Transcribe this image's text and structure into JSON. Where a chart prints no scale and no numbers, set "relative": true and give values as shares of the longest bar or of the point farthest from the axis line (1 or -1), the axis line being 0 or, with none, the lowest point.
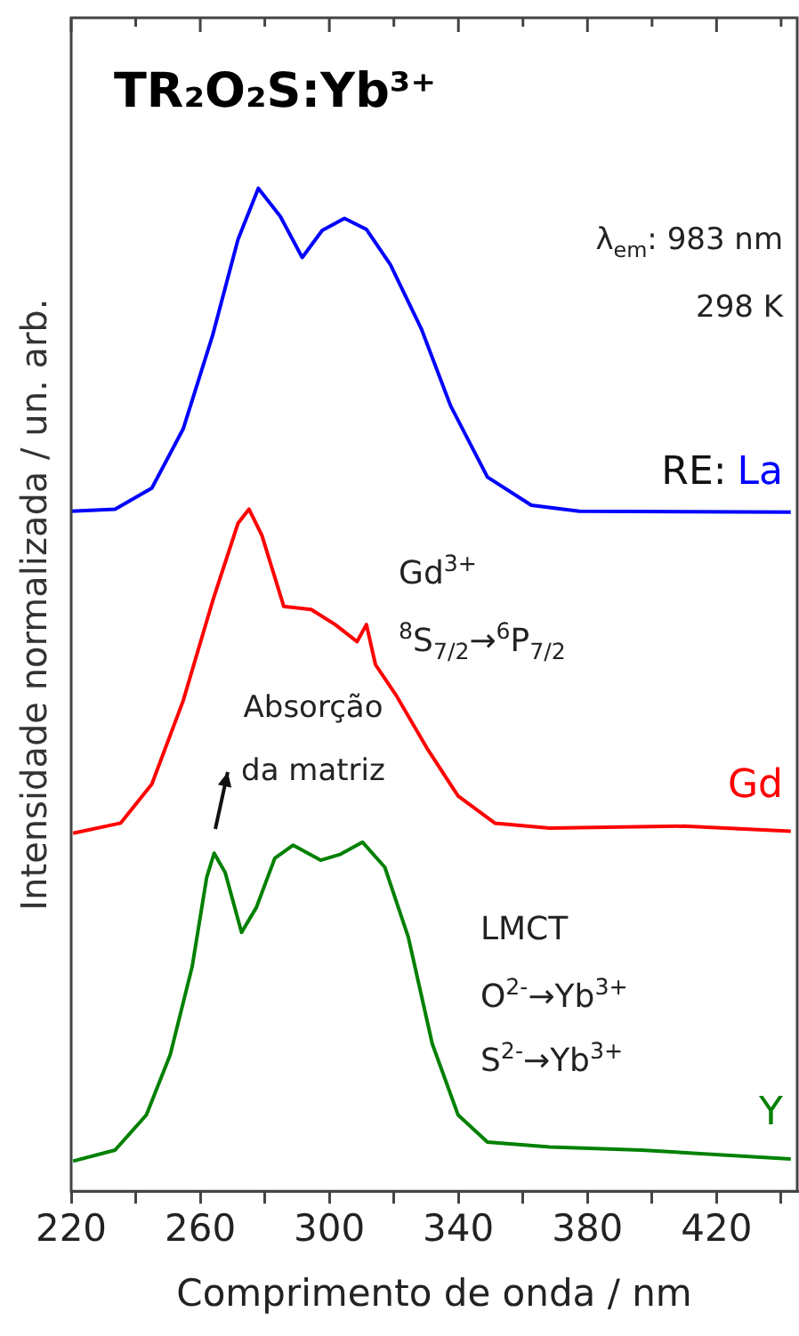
{
  "chart_data": {
    "type": "line",
    "title": "TR₂O₂S:Yb³⁺",
    "xlabel": "Comprimento de onda / nm",
    "ylabel": "Intensidade normalizada / un. arb.",
    "legend_title": "RE:",
    "relative": true,
    "xlim": [
      220,
      445
    ],
    "xticks": [
      220,
      {
        "value": 240,
        "label": null
      },
      260,
      {
        "value": 280,
        "label": null
      },
      300,
      {
        "value": 320,
        "label": null
      },
      340,
      {
        "value": 360,
        "label": null
      },
      380,
      {
        "value": 400,
        "label": null
      },
      420,
      {
        "value": 440,
        "label": null
      }
    ],
    "grid": false,
    "legend": false,
    "marker": "none",
    "line_style": "solid",
    "annotations": [
      "λ$_{em}$: 983 nm",
      "298 K",
      "Gd$^{3+}$",
      "$^{8}$S$_{7/2}$→$^{6}$P$_{7/2}$",
      {
        "text": "Absorção da matriz",
        "x": 264,
        "y": 0.34
      },
      "LMCT",
      "O$^{2-}$→Yb$^{3+}$",
      "S$^{2-}$→Yb$^{3+}$"
    ],
    "series": [
      {
        "name": "La",
        "color": "#0000ff",
        "x": [
          220,
          233.6,
          245,
          254.7,
          263.8,
          271.7,
          278,
          284.8,
          291.6,
          297.8,
          304.7,
          311.5,
          318.9,
          328.5,
          337.6,
          349,
          362.6,
          377.4,
          443
        ],
        "values": [
          0.678,
          0.68,
          0.701,
          0.76,
          0.853,
          0.949,
          1,
          0.972,
          0.931,
          0.958,
          0.97,
          0.959,
          0.924,
          0.86,
          0.783,
          0.712,
          0.684,
          0.678,
          0.677
        ]
      },
      {
        "name": "Gd",
        "color": "#ff0000",
        "x": [
          220.6,
          235.3,
          245,
          254.7,
          263.8,
          271.7,
          275.1,
          279.1,
          285.9,
          294.4,
          301.8,
          308.6,
          311.5,
          314.3,
          320.6,
          330.2,
          339.9,
          351.3,
          368.3,
          409.8,
          443
        ],
        "values": [
          0.357,
          0.367,
          0.406,
          0.489,
          0.588,
          0.666,
          0.68,
          0.654,
          0.583,
          0.58,
          0.565,
          0.548,
          0.565,
          0.525,
          0.495,
          0.442,
          0.394,
          0.367,
          0.362,
          0.364,
          0.359
        ]
      },
      {
        "name": "Y",
        "color": "#008000",
        "x": [
          220.6,
          233.6,
          243.3,
          250.7,
          257.5,
          262,
          264.3,
          267.7,
          272.8,
          277.4,
          283.1,
          288.8,
          297.3,
          303.5,
          310.3,
          317.2,
          324.5,
          331.9,
          339.9,
          349,
          368.3,
          396.7,
          443
        ],
        "values": [
          0.03,
          0.041,
          0.076,
          0.136,
          0.224,
          0.313,
          0.337,
          0.318,
          0.258,
          0.283,
          0.332,
          0.345,
          0.33,
          0.336,
          0.348,
          0.323,
          0.253,
          0.147,
          0.076,
          0.049,
          0.044,
          0.041,
          0.032
        ]
      }
    ]
  }
}
